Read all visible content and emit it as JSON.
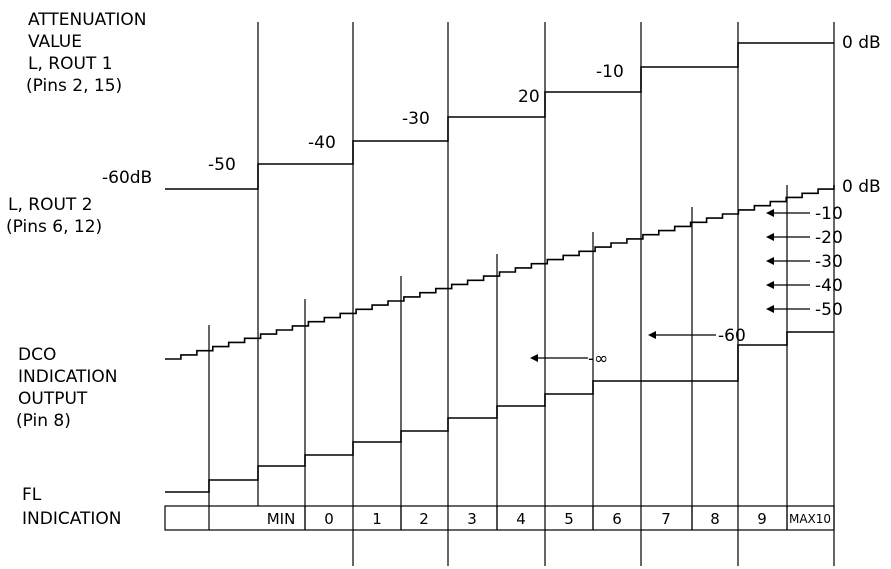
{
  "labels": {
    "attenuation_line1": "ATTENUATION",
    "attenuation_line2": "VALUE",
    "rout1_line1": "L, ROUT 1",
    "rout1_line2": "(Pins 2, 15)",
    "rout2_line1": "L, ROUT 2",
    "rout2_line2": "(Pins 6, 12)",
    "dco_line1": "DCO",
    "dco_line2": "INDICATION",
    "dco_line3": "OUTPUT",
    "dco_line4": "(Pin 8)",
    "fl_line1": "FL",
    "fl_line2": "INDICATION"
  },
  "rout1_steps": [
    "-60dB",
    "-50",
    "-40",
    "-30",
    "20",
    "-10",
    "0 dB"
  ],
  "rout2_scale": [
    "0 dB",
    "-10",
    "-20",
    "-30",
    "-40",
    "-50",
    "-60",
    "-∞"
  ],
  "fl_cells": [
    "MIN",
    "0",
    "1",
    "2",
    "3",
    "4",
    "5",
    "6",
    "7",
    "8",
    "9",
    "MAX10"
  ]
}
